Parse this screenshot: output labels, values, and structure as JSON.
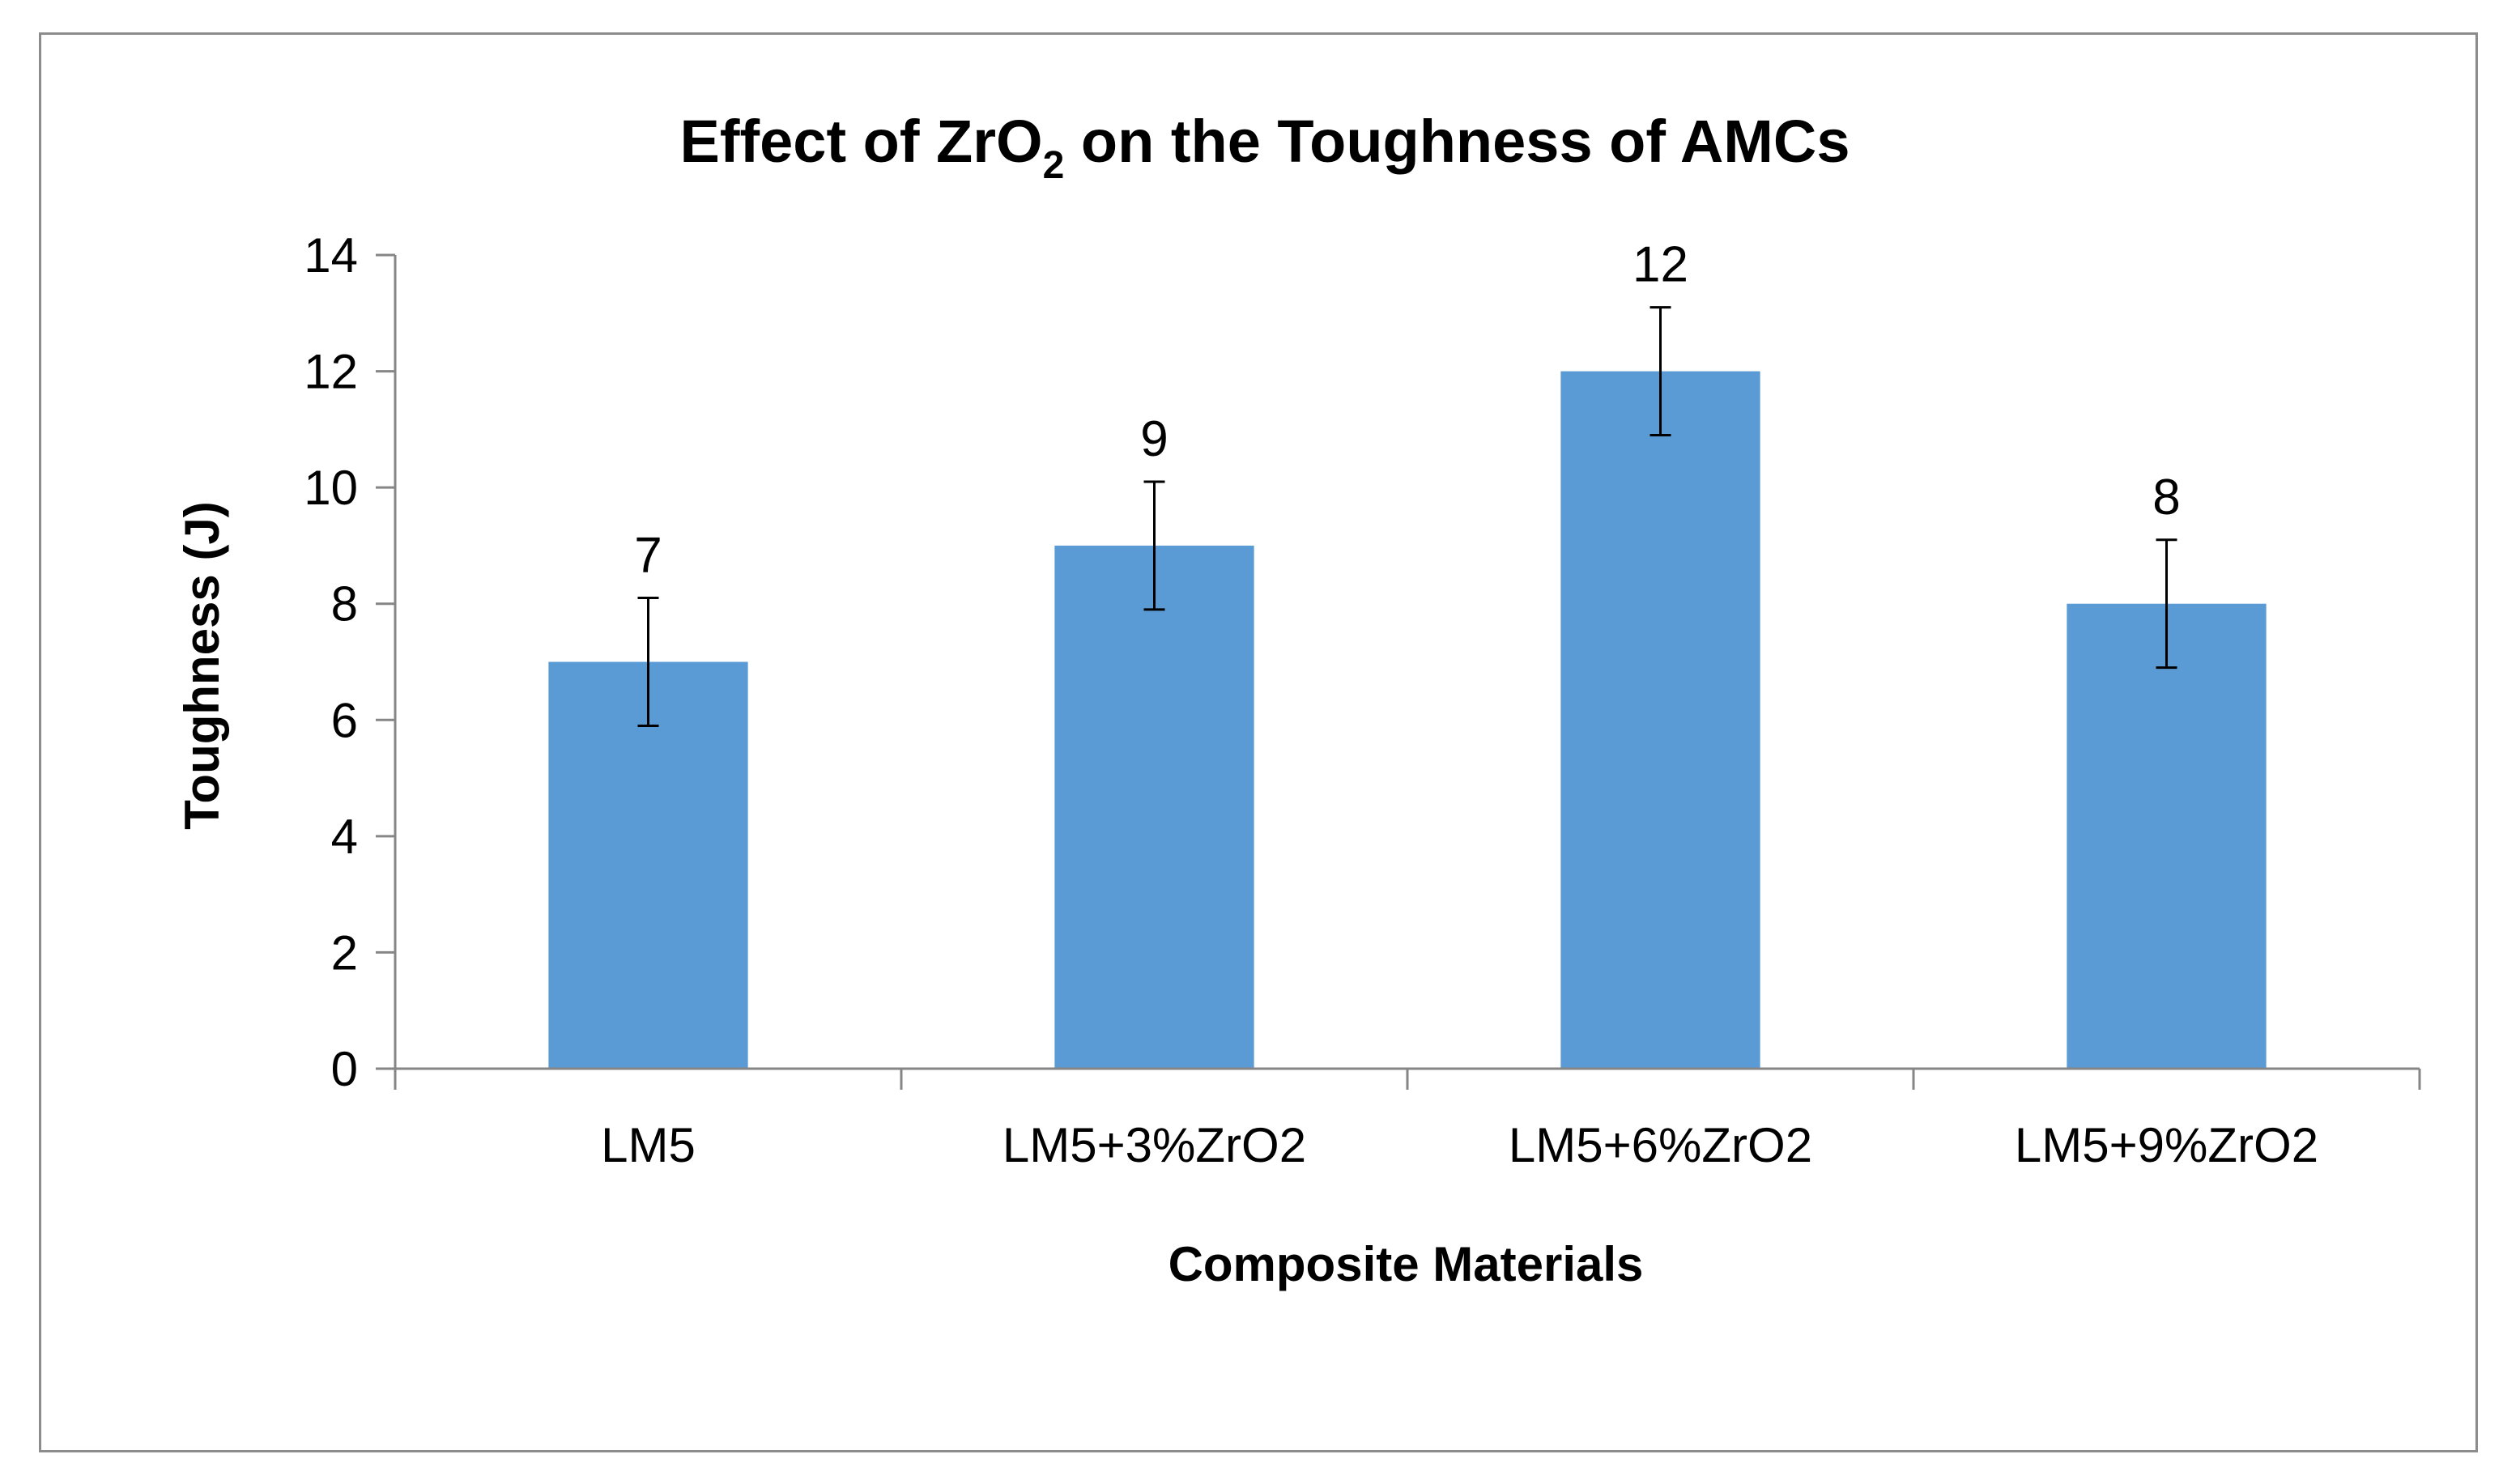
{
  "chart_data": {
    "type": "bar",
    "title": {
      "prefix": "Effect of ZrO",
      "subscript": "2",
      "suffix": " on the Toughness of AMCs"
    },
    "xlabel": "Composite Materials",
    "ylabel": "Toughness (J)",
    "categories": [
      "LM5",
      "LM5+3%ZrO2",
      "LM5+6%ZrO2",
      "LM5+9%ZrO2"
    ],
    "values": [
      7,
      9,
      12,
      8
    ],
    "data_labels": [
      "7",
      "9",
      "12",
      "8"
    ],
    "error": [
      1.1,
      1.1,
      1.1,
      1.1
    ],
    "ylim": [
      0,
      14
    ],
    "yticks": [
      0,
      2,
      4,
      6,
      8,
      10,
      12,
      14
    ],
    "ytick_labels": [
      "0",
      "2",
      "4",
      "6",
      "8",
      "10",
      "12",
      "14"
    ],
    "grid": false,
    "legend": "none",
    "colors": {
      "bar": "#5b9bd5",
      "axis": "#868686",
      "error_bar": "#000000"
    }
  }
}
